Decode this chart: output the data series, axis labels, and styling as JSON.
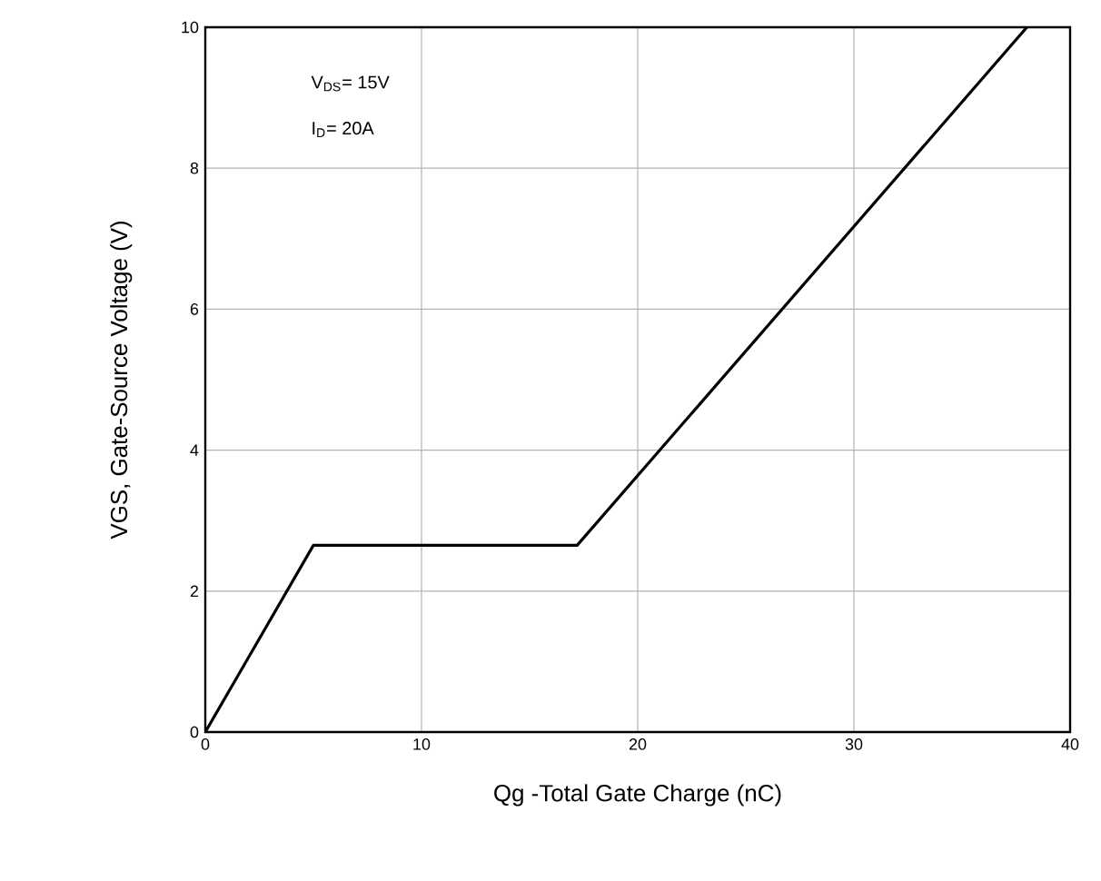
{
  "chart_data": {
    "type": "line",
    "xlabel": "Qg -Total Gate Charge (nC)",
    "ylabel": "VGS, Gate-Source Voltage (V)",
    "x": [
      0,
      5,
      17.2,
      38
    ],
    "series": [
      {
        "color": "#000000",
        "values": [
          0,
          2.65,
          2.65,
          10
        ]
      }
    ],
    "xlim": [
      0,
      40
    ],
    "xticks": [
      0,
      10,
      20,
      30,
      40
    ],
    "ylim": [
      0,
      10
    ],
    "yticks": [
      0,
      2,
      4,
      6,
      8,
      10
    ],
    "grid": true,
    "marker": "none",
    "line_style": "solid",
    "annotations": [
      "V$_{DS}$= 15V",
      "I$_{D}$= 20A"
    ]
  }
}
